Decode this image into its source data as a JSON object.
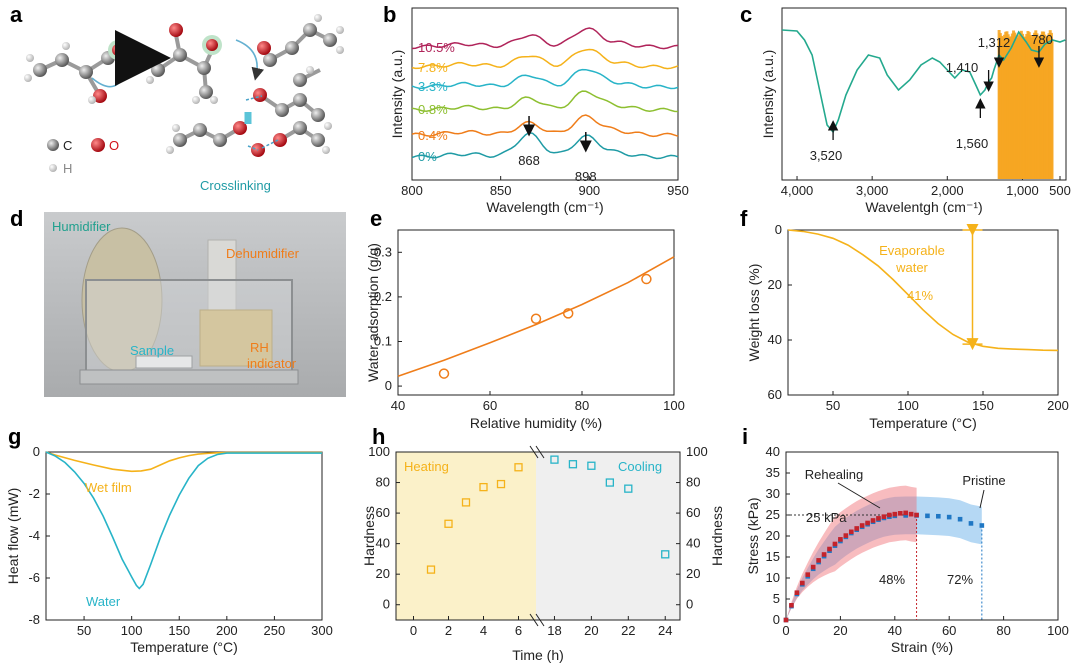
{
  "panels": {
    "a": {
      "label": "a",
      "legend": [
        {
          "symbol": "C",
          "color": "#7a7a7a"
        },
        {
          "symbol": "O",
          "color": "#d1121a"
        },
        {
          "symbol": "H",
          "color": "#d0d0d0"
        }
      ],
      "annotation": "Crosslinking"
    },
    "d": {
      "label": "d",
      "labels": [
        "Humidifier",
        "Dehumidifier",
        "Sample",
        "RH",
        "indicator"
      ]
    }
  },
  "chart_data": [
    {
      "panel": "b",
      "type": "line",
      "xlabel": "Wavelength (cm⁻¹)",
      "ylabel": "Intensity (a.u.)",
      "xlim": [
        800,
        950
      ],
      "xticks": [
        800,
        850,
        900,
        950
      ],
      "series": [
        {
          "name": "0%",
          "color": "#1f9ba5",
          "peaks": [
            868,
            898
          ]
        },
        {
          "name": "0.4%",
          "color": "#ef7d1a"
        },
        {
          "name": "0.8%",
          "color": "#8dbf30"
        },
        {
          "name": "3.3%",
          "color": "#28b4c8"
        },
        {
          "name": "7.8%",
          "color": "#f5b21a"
        },
        {
          "name": "10.5%",
          "color": "#b0245a"
        }
      ],
      "peak_labels": [
        "868",
        "898"
      ]
    },
    {
      "panel": "c",
      "type": "line",
      "xlabel": "Wavelentgh (cm⁻¹)",
      "ylabel": "Intensity (a.u.)",
      "xlim": [
        4000,
        500
      ],
      "xticks": [
        4000,
        3000,
        2000,
        1000,
        500
      ],
      "peak_labels": [
        "3,520",
        "1,560",
        "1,410",
        "1,312",
        "780"
      ],
      "colors": {
        "spectrum": "#24a98e",
        "band": "#f6a623"
      }
    },
    {
      "panel": "e",
      "type": "scatter",
      "xlabel": "Relative humidity (%)",
      "ylabel": "Water adsorption (g/g)",
      "xlim": [
        40,
        100
      ],
      "ylim": [
        -0.02,
        0.35
      ],
      "xticks": [
        40,
        60,
        80,
        100
      ],
      "yticks": [
        0,
        0.1,
        0.2,
        0.3
      ],
      "x": [
        50,
        70,
        77,
        94
      ],
      "y": [
        0.028,
        0.151,
        0.163,
        0.24
      ],
      "fit": {
        "x": [
          40,
          50,
          60,
          70,
          80,
          90,
          100
        ],
        "y": [
          0.022,
          0.058,
          0.097,
          0.138,
          0.183,
          0.232,
          0.29
        ]
      },
      "color": "#ef7d1a"
    },
    {
      "panel": "f",
      "type": "line",
      "xlabel": "Temperature (°C)",
      "ylabel": "Weight loss (%)",
      "xlim": [
        20,
        200
      ],
      "ylim": [
        0,
        60
      ],
      "y_inverted": true,
      "xticks": [
        50,
        100,
        150,
        200
      ],
      "yticks": [
        0,
        20,
        40,
        60
      ],
      "x": [
        20,
        30,
        40,
        50,
        60,
        70,
        80,
        90,
        100,
        110,
        120,
        130,
        140,
        150,
        160,
        170,
        180,
        190,
        200
      ],
      "y": [
        0,
        0.5,
        1.5,
        3,
        5.5,
        9,
        13,
        18,
        23.5,
        29,
        34,
        38,
        40.8,
        42.3,
        43,
        43.3,
        43.5,
        43.7,
        43.8
      ],
      "annotation": [
        "Evaporable",
        "water",
        "41%"
      ],
      "color": "#f5b21a"
    },
    {
      "panel": "g",
      "type": "line",
      "xlabel": "Temperature (°C)",
      "ylabel": "Heat flow (mW)",
      "xlim": [
        10,
        300
      ],
      "ylim": [
        -8,
        0
      ],
      "xticks": [
        50,
        100,
        150,
        200,
        250,
        300
      ],
      "yticks": [
        0,
        -2,
        -4,
        -6,
        -8
      ],
      "series": [
        {
          "name": "Wet film",
          "color": "#f5b21a",
          "x": [
            10,
            20,
            40,
            60,
            80,
            100,
            110,
            120,
            130,
            140,
            150,
            160,
            170,
            180,
            190,
            200,
            300
          ],
          "y": [
            0,
            -0.15,
            -0.4,
            -0.62,
            -0.82,
            -0.92,
            -0.9,
            -0.82,
            -0.62,
            -0.42,
            -0.28,
            -0.17,
            -0.1,
            -0.06,
            -0.04,
            -0.03,
            -0.03
          ]
        },
        {
          "name": "Water",
          "color": "#28b4c8",
          "x": [
            10,
            20,
            30,
            40,
            50,
            60,
            70,
            80,
            90,
            100,
            105,
            108,
            112,
            120,
            130,
            140,
            150,
            160,
            170,
            180,
            190,
            200,
            300
          ],
          "y": [
            0,
            -0.2,
            -0.5,
            -0.95,
            -1.5,
            -2.2,
            -3.05,
            -4.05,
            -5.1,
            -5.95,
            -6.35,
            -6.5,
            -6.3,
            -5.35,
            -4.1,
            -3.0,
            -2.05,
            -1.25,
            -0.65,
            -0.3,
            -0.12,
            -0.05,
            -0.05
          ]
        }
      ]
    },
    {
      "panel": "h",
      "type": "scatter",
      "xlabel": "Time (h)",
      "ylabel_left": "Hardness",
      "ylabel_right": "Hardness",
      "ylim": [
        -10,
        100
      ],
      "yticks": [
        0,
        20,
        40,
        60,
        80,
        100
      ],
      "xticks": [
        0,
        2,
        4,
        6,
        18,
        20,
        22,
        24
      ],
      "series": [
        {
          "name": "Heating",
          "color": "#f5b21a",
          "x": [
            1,
            2,
            3,
            4,
            5,
            6
          ],
          "y": [
            23,
            53,
            67,
            77,
            79,
            90
          ]
        },
        {
          "name": "Cooling",
          "color": "#28b4c8",
          "x": [
            18,
            19,
            20,
            21,
            22,
            24
          ],
          "y": [
            95,
            92,
            91,
            80,
            76,
            33
          ]
        }
      ]
    },
    {
      "panel": "i",
      "type": "line",
      "xlabel": "Strain (%)",
      "ylabel": "Stress (kPa)",
      "xlim": [
        0,
        100
      ],
      "ylim": [
        0,
        40
      ],
      "xticks": [
        0,
        20,
        40,
        60,
        80,
        100
      ],
      "yticks": [
        0,
        5,
        10,
        15,
        20,
        25,
        30,
        35,
        40
      ],
      "series": [
        {
          "name": "Rehealing",
          "color": "#c4232b",
          "x": [
            0,
            2,
            4,
            6,
            8,
            10,
            12,
            14,
            16,
            18,
            20,
            22,
            24,
            26,
            28,
            30,
            32,
            34,
            36,
            38,
            40,
            42,
            44,
            46,
            48
          ],
          "y": [
            0,
            3.5,
            6.5,
            8.8,
            10.8,
            12.6,
            14.2,
            15.6,
            16.9,
            18.1,
            19.2,
            20.1,
            21.0,
            21.8,
            22.5,
            23.1,
            23.7,
            24.2,
            24.6,
            25.0,
            25.2,
            25.4,
            25.5,
            25.2,
            25.0
          ]
        },
        {
          "name": "Pristine",
          "color": "#1f77c4",
          "x": [
            0,
            2,
            4,
            6,
            8,
            10,
            12,
            14,
            16,
            18,
            20,
            22,
            24,
            26,
            28,
            30,
            32,
            34,
            36,
            38,
            40,
            44,
            48,
            52,
            56,
            60,
            64,
            68,
            72
          ],
          "y": [
            0,
            3.3,
            6.2,
            8.5,
            10.4,
            12.2,
            13.8,
            15.2,
            16.5,
            17.7,
            18.8,
            19.8,
            20.7,
            21.5,
            22.2,
            22.8,
            23.4,
            23.9,
            24.3,
            24.6,
            24.8,
            24.9,
            24.9,
            24.8,
            24.7,
            24.5,
            24.0,
            23.0,
            22.5
          ]
        }
      ],
      "annotations": [
        "25 kPa",
        "48%",
        "72%"
      ]
    }
  ]
}
